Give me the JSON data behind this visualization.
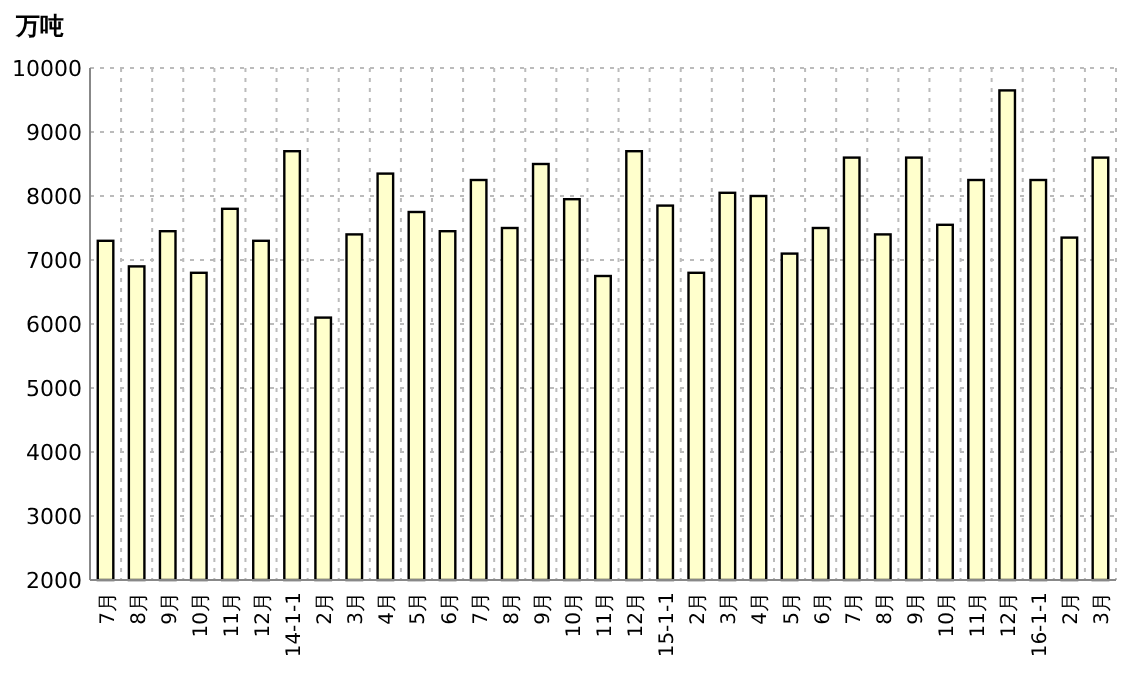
{
  "chart_data": {
    "type": "bar",
    "ylabel": "万吨",
    "categories": [
      "7月",
      "8月",
      "9月",
      "10月",
      "11月",
      "12月",
      "14-1-1",
      "2月",
      "3月",
      "4月",
      "5月",
      "6月",
      "7月",
      "8月",
      "9月",
      "10月",
      "11月",
      "12月",
      "15-1-1",
      "2月",
      "3月",
      "4月",
      "5月",
      "6月",
      "7月",
      "8月",
      "9月",
      "10月",
      "11月",
      "12月",
      "16-1-1",
      "2月",
      "3月"
    ],
    "values": [
      7300,
      6900,
      7450,
      6800,
      7800,
      7300,
      8700,
      6100,
      7400,
      8350,
      7750,
      7450,
      8250,
      7500,
      8500,
      7950,
      6750,
      8700,
      7850,
      6800,
      8050,
      8000,
      7100,
      7500,
      8600,
      7400,
      8600,
      7550,
      8250,
      9650,
      8250,
      7350,
      8600
    ],
    "color": "#ffffcc",
    "ylim": [
      2000,
      10000
    ],
    "yticks": [
      2000,
      3000,
      4000,
      5000,
      6000,
      7000,
      8000,
      9000,
      10000
    ],
    "grid": true
  }
}
